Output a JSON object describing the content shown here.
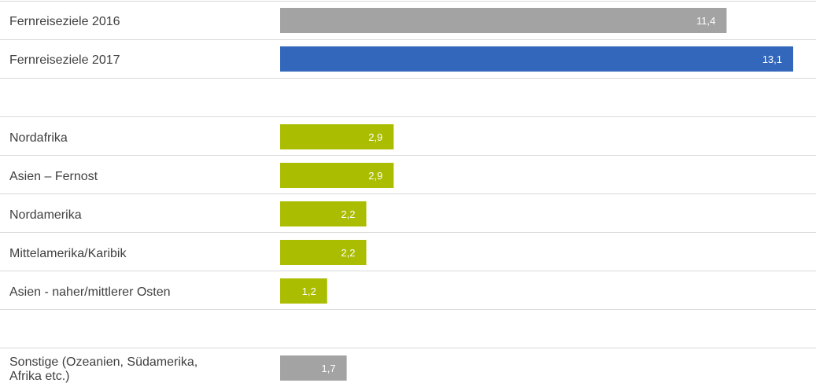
{
  "chart_data": {
    "type": "bar",
    "orientation": "horizontal",
    "bars": [
      {
        "label_lines": [
          "Fernreiseziele 2016"
        ],
        "value": 11.4,
        "value_label": "11,4",
        "color": "#a3a3a3"
      },
      {
        "label_lines": [
          "Fernreiseziele 2017"
        ],
        "value": 13.1,
        "value_label": "13,1",
        "color": "#3367bb"
      },
      {
        "label_lines": [
          "Nordafrika"
        ],
        "value": 2.9,
        "value_label": "2,9",
        "color": "#aabd00"
      },
      {
        "label_lines": [
          "Asien – Fernost"
        ],
        "value": 2.9,
        "value_label": "2,9",
        "color": "#aabd00"
      },
      {
        "label_lines": [
          "Nordamerika"
        ],
        "value": 2.2,
        "value_label": "2,2",
        "color": "#aabd00"
      },
      {
        "label_lines": [
          "Mittelamerika/Karibik"
        ],
        "value": 2.2,
        "value_label": "2,2",
        "color": "#aabd00"
      },
      {
        "label_lines": [
          "Asien - naher/mittlerer Osten"
        ],
        "value": 1.2,
        "value_label": "1,2",
        "color": "#aabd00"
      },
      {
        "label_lines": [
          "Sonstige (Ozeanien, Südamerika,",
          "Afrika etc.)"
        ],
        "value": 1.7,
        "value_label": "1,7",
        "color": "#a3a3a3"
      }
    ],
    "title": "",
    "xlabel": "",
    "ylabel": "",
    "grid": false,
    "legend": "none"
  }
}
